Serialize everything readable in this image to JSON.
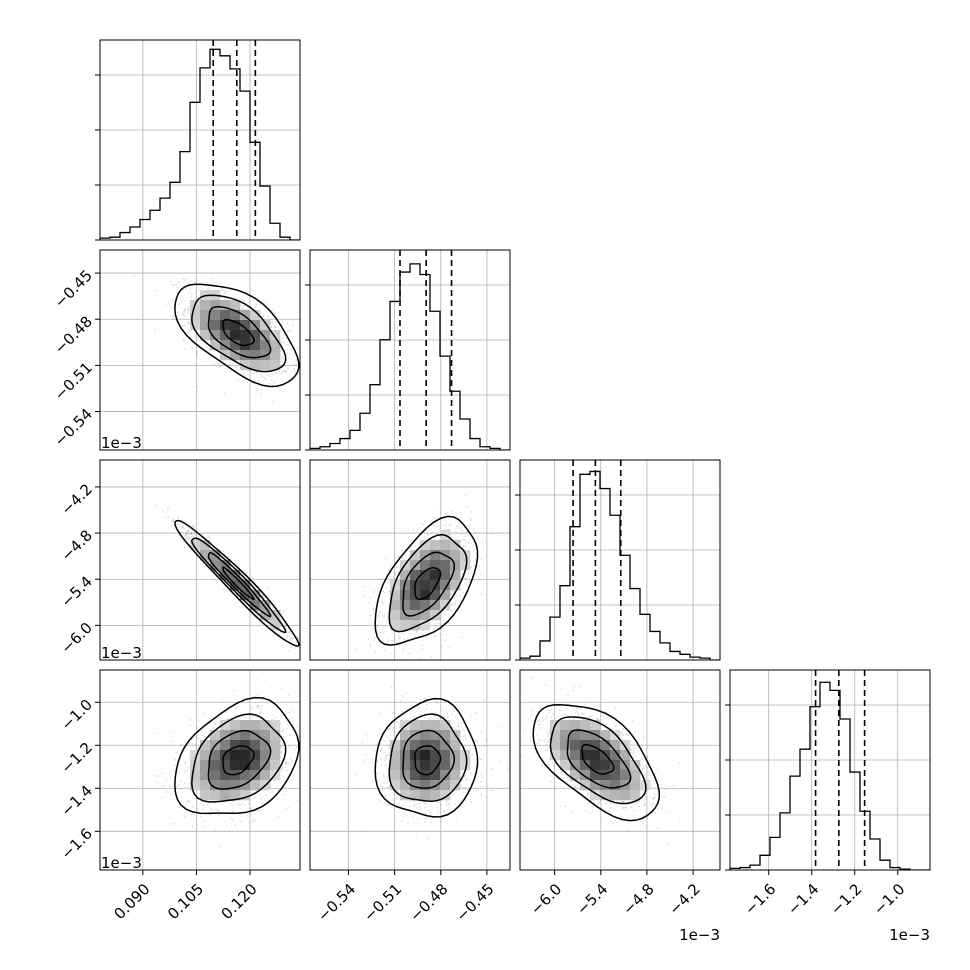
{
  "chart_data": {
    "type": "corner",
    "parameters": 4,
    "grid": true,
    "offset_labels": [
      "1e−3",
      "1e−3",
      "1e−3",
      "1e−3"
    ],
    "axes": [
      {
        "range": [
          0.078,
          0.134
        ],
        "ticks": [
          0.09,
          0.105,
          0.12
        ],
        "tick_labels": [
          "0.090",
          "0.105",
          "0.120"
        ]
      },
      {
        "range": [
          -0.565,
          -0.435
        ],
        "ticks": [
          -0.54,
          -0.51,
          -0.48,
          -0.45
        ],
        "tick_labels": [
          "−0.54",
          "−0.51",
          "−0.48",
          "−0.45"
        ]
      },
      {
        "range": [
          -6.45,
          -3.85
        ],
        "ticks": [
          -6.0,
          -5.4,
          -4.8,
          -4.2
        ],
        "tick_labels": [
          "−6.0",
          "−5.4",
          "−4.8",
          "−4.2"
        ]
      },
      {
        "range": [
          -1.78,
          -0.85
        ],
        "ticks": [
          -1.6,
          -1.4,
          -1.2,
          -1.0
        ],
        "tick_labels": [
          "−1.6",
          "−1.4",
          "−1.2",
          "−1.0"
        ]
      }
    ],
    "histograms": [
      {
        "edges_start": 0.078,
        "bin_width": 0.0028,
        "counts": [
          2,
          3,
          8,
          14,
          22,
          32,
          45,
          62,
          95,
          148,
          185,
          205,
          198,
          184,
          160,
          105,
          58,
          18,
          3,
          0
        ],
        "quantiles": [
          0.1097,
          0.1163,
          0.1215
        ],
        "ymax": 215
      },
      {
        "edges_start": -0.565,
        "bin_width": 0.0065,
        "counts": [
          2,
          4,
          8,
          14,
          24,
          45,
          80,
          135,
          182,
          218,
          228,
          215,
          170,
          115,
          72,
          38,
          14,
          4,
          2,
          0
        ],
        "quantiles": [
          -0.5065,
          -0.4895,
          -0.473
        ],
        "ymax": 245
      },
      {
        "edges_start": -6.45,
        "bin_width": 0.13,
        "counts": [
          2,
          4,
          20,
          45,
          78,
          140,
          195,
          198,
          180,
          152,
          110,
          75,
          48,
          30,
          18,
          9,
          6,
          3,
          2,
          0
        ],
        "quantiles": [
          -5.76,
          -5.47,
          -5.14
        ],
        "ymax": 210
      },
      {
        "edges_start": -1.78,
        "bin_width": 0.0465,
        "counts": [
          2,
          3,
          6,
          18,
          40,
          70,
          115,
          148,
          200,
          230,
          220,
          185,
          120,
          72,
          38,
          12,
          3,
          1,
          0,
          0
        ],
        "quantiles": [
          -1.382,
          -1.274,
          -1.154
        ],
        "ymax": 245
      }
    ],
    "pairs": [
      {
        "row": 1,
        "col": 0,
        "mean": [
          0.1165,
          -0.489
        ],
        "sd": [
          0.0072,
          0.0138
        ],
        "rho": -0.58
      },
      {
        "row": 2,
        "col": 0,
        "mean": [
          0.1165,
          -5.45
        ],
        "sd": [
          0.0072,
          0.34
        ],
        "rho": -0.97
      },
      {
        "row": 2,
        "col": 1,
        "mean": [
          -0.489,
          -5.45
        ],
        "sd": [
          0.0138,
          0.34
        ],
        "rho": 0.52
      },
      {
        "row": 3,
        "col": 0,
        "mean": [
          0.1165,
          -1.268
        ],
        "sd": [
          0.0072,
          0.112
        ],
        "rho": 0.3
      },
      {
        "row": 3,
        "col": 1,
        "mean": [
          -0.489,
          -1.268
        ],
        "sd": [
          0.0138,
          0.112
        ],
        "rho": 0.05
      },
      {
        "row": 3,
        "col": 2,
        "mean": [
          -5.45,
          -1.268
        ],
        "sd": [
          0.34,
          0.112
        ],
        "rho": -0.55
      }
    ],
    "contour_levels_sigma": [
      0.5,
      1.0,
      1.5,
      2.0
    ]
  }
}
